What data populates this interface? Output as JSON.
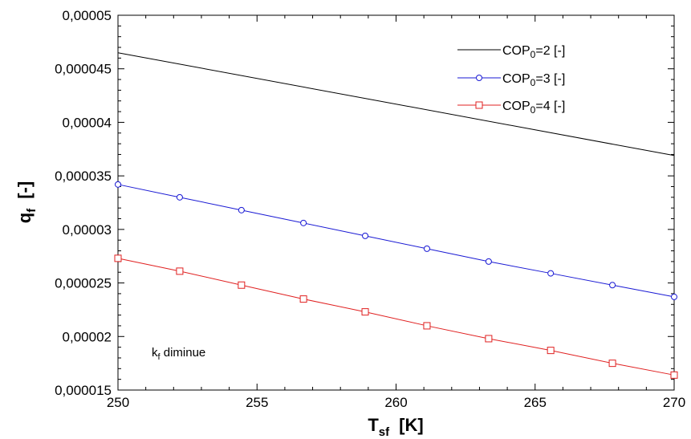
{
  "chart_data": {
    "type": "line",
    "xlabel": {
      "main": "T",
      "sub": "sf",
      "unit": "[K]"
    },
    "ylabel": {
      "main": "q",
      "sub": "f",
      "unit": "[-]"
    },
    "xlim": [
      250,
      270
    ],
    "ylim": [
      1.5e-05,
      5e-05
    ],
    "x_ticks": [
      "250",
      "255",
      "260",
      "265",
      "270"
    ],
    "y_ticks": [
      "0,000015",
      "0,00002",
      "0,000025",
      "0,00003",
      "0,000035",
      "0,00004",
      "0,000045",
      "0,00005"
    ],
    "grid": false,
    "legend_position": "top-right",
    "annotation": {
      "main": "k",
      "sub": "f",
      "rest": " diminue"
    },
    "series": [
      {
        "name": "COP0=2 [-]",
        "legend": {
          "pre": "COP",
          "sub": "0",
          "post": "=2 [-]"
        },
        "color": "#000000",
        "marker": "none",
        "x": [
          250,
          270
        ],
        "y": [
          4.65e-05,
          3.69e-05
        ]
      },
      {
        "name": "COP0=3 [-]",
        "legend": {
          "pre": "COP",
          "sub": "0",
          "post": "=3 [-]"
        },
        "color": "#1a1ad4",
        "marker": "circle",
        "x": [
          250,
          252.22,
          254.44,
          256.67,
          258.89,
          261.11,
          263.33,
          265.56,
          267.78,
          270
        ],
        "y": [
          3.42e-05,
          3.3e-05,
          3.18e-05,
          3.06e-05,
          2.94e-05,
          2.82e-05,
          2.7e-05,
          2.59e-05,
          2.48e-05,
          2.37e-05
        ]
      },
      {
        "name": "COP0=4 [-]",
        "legend": {
          "pre": "COP",
          "sub": "0",
          "post": "=4 [-]"
        },
        "color": "#e02020",
        "marker": "square",
        "x": [
          250,
          252.22,
          254.44,
          256.67,
          258.89,
          261.11,
          263.33,
          265.56,
          267.78,
          270
        ],
        "y": [
          2.73e-05,
          2.61e-05,
          2.48e-05,
          2.35e-05,
          2.23e-05,
          2.1e-05,
          1.98e-05,
          1.87e-05,
          1.75e-05,
          1.64e-05
        ]
      }
    ]
  }
}
